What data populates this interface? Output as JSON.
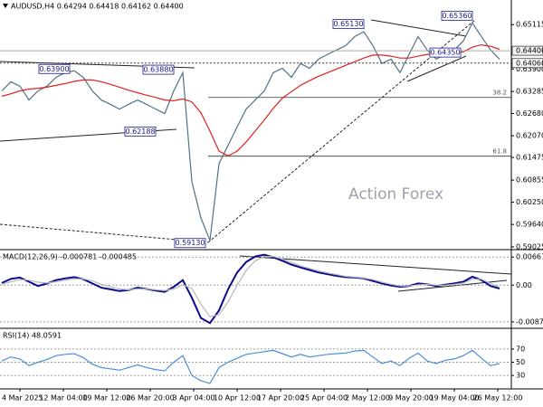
{
  "chart_data": [
    {
      "type": "line",
      "title": "AUDUSD,H4  0.64294 0.64418 0.64162 0.64400",
      "watermark": "Action Forex",
      "ylim": [
        0.5895,
        0.6579
      ],
      "yticks": [
        0.65115,
        {
          "value": 0.639,
          "label": "0.63900"
        },
        0.63285,
        {
          "value": 0.6268,
          "label": "0.62680"
        },
        {
          "value": 0.6207,
          "label": "0.62070"
        },
        0.61475,
        0.60855,
        {
          "value": 0.6025,
          "label": "0.60250"
        },
        {
          "value": 0.5964,
          "label": "0.59640"
        },
        0.59025
      ],
      "grid": false,
      "price_markers": [
        {
          "value": 0.644,
          "label": "0.64400"
        },
        {
          "value": 0.6406,
          "label": "0.64060"
        }
      ],
      "point_labels": [
        {
          "value": 0.639,
          "label": "0.63900"
        },
        {
          "value": 0.6388,
          "label": "0.63880"
        },
        {
          "value": 0.62188,
          "label": "0.62188"
        },
        {
          "value": 0.5913,
          "label": "0.59130"
        },
        {
          "value": 0.6513,
          "label": "0.65130"
        },
        {
          "value": 0.6536,
          "label": "0.65360"
        },
        {
          "value": 0.6435,
          "label": "0.64350"
        }
      ],
      "fib_levels": [
        {
          "value": 0.6312,
          "label": "38.2"
        },
        {
          "value": 0.6151,
          "label": "61.8"
        }
      ],
      "series": [
        {
          "color": "#4f7287",
          "values": [
            0.633,
            0.6355,
            0.6343,
            0.6305,
            0.633,
            0.6343,
            0.6367,
            0.638,
            0.6385,
            0.6367,
            0.633,
            0.6305,
            0.6293,
            0.628,
            0.6293,
            0.6305,
            0.6293,
            0.628,
            0.6268,
            0.633,
            0.638,
            0.6081,
            0.5982,
            0.592,
            0.6131,
            0.6181,
            0.6231,
            0.628,
            0.6305,
            0.633,
            0.638,
            0.6392,
            0.6367,
            0.6405,
            0.6392,
            0.6417,
            0.643,
            0.6442,
            0.6454,
            0.6479,
            0.6492,
            0.6454,
            0.6405,
            0.6417,
            0.638,
            0.643,
            0.6479,
            0.6442,
            0.6417,
            0.643,
            0.6442,
            0.6467,
            0.6516,
            0.6479,
            0.6442,
            0.6417
          ]
        },
        {
          "color": "#e02020",
          "values": [
            0.6315,
            0.6322,
            0.633,
            0.6335,
            0.6337,
            0.634,
            0.6345,
            0.635,
            0.6356,
            0.636,
            0.636,
            0.6355,
            0.6348,
            0.634,
            0.6332,
            0.6325,
            0.6318,
            0.6312,
            0.6305,
            0.6303,
            0.6308,
            0.63,
            0.627,
            0.622,
            0.6165,
            0.6152,
            0.6165,
            0.619,
            0.622,
            0.625,
            0.6282,
            0.631,
            0.6328,
            0.6345,
            0.6358,
            0.637,
            0.638,
            0.639,
            0.64,
            0.641,
            0.642,
            0.6428,
            0.6428,
            0.6425,
            0.642,
            0.642,
            0.6425,
            0.643,
            0.643,
            0.643,
            0.6433,
            0.6437,
            0.645,
            0.6456,
            0.6452,
            0.6444
          ]
        }
      ]
    },
    {
      "type": "line",
      "title": "MACD(12,26,9) -0.000781 -0.000485",
      "ylim": [
        -0.01004,
        0.00822
      ],
      "yticks": [
        0.006675,
        {
          "value": 0,
          "label": "0.00"
        },
        -0.008724
      ],
      "grid": true,
      "series": [
        {
          "color": "#0a0a8c",
          "values": [
            0.0005,
            0.0015,
            0.0018,
            0.0008,
            -0.0002,
            0.0004,
            0.0012,
            0.0016,
            0.0019,
            0.0014,
            0.0004,
            -0.0006,
            -0.001,
            -0.0014,
            -0.0012,
            -0.0006,
            -0.0009,
            -0.0013,
            -0.0016,
            -0.0004,
            0.0012,
            -0.003,
            -0.0078,
            -0.009,
            -0.006,
            -0.001,
            0.003,
            0.0055,
            0.0068,
            0.0072,
            0.0066,
            0.0058,
            0.0049,
            0.0042,
            0.0036,
            0.003,
            0.0026,
            0.0022,
            0.0019,
            0.0018,
            0.0016,
            0.001,
            0.0004,
            -0.0001,
            -0.0004,
            -0.0002,
            0.0004,
            0.0002,
            -0.0002,
            0.0001,
            0.0004,
            0.0008,
            0.002,
            0.0012,
            -0.0002,
            -0.0008
          ]
        },
        {
          "color": "#b8b8b8",
          "values": [
            0.0002,
            0.0008,
            0.0013,
            0.0012,
            0.0007,
            0.0005,
            0.0008,
            0.0012,
            0.0015,
            0.0015,
            0.001,
            0.0002,
            -0.0004,
            -0.0009,
            -0.0011,
            -0.0009,
            -0.0009,
            -0.0011,
            -0.0013,
            -0.0009,
            0.0001,
            -0.0008,
            -0.0045,
            -0.0075,
            -0.007,
            -0.004,
            0.0,
            0.0035,
            0.0058,
            0.0068,
            0.0068,
            0.0062,
            0.0054,
            0.0046,
            0.004,
            0.0034,
            0.0029,
            0.0025,
            0.0021,
            0.0019,
            0.0017,
            0.0013,
            0.0007,
            0.0002,
            -0.0002,
            -0.0002,
            0.0001,
            0.0002,
            0.0,
            0.0,
            0.0002,
            0.0005,
            0.0014,
            0.0014,
            0.0004,
            -0.0005
          ]
        }
      ]
    },
    {
      "type": "line",
      "title": "RSI(14) 48.0591",
      "ylim": [
        11,
        100
      ],
      "yticks": [
        70,
        50,
        30
      ],
      "grid": true,
      "x_axis_labels": [
        "4 Mar 2025",
        "12 Mar 04:00",
        "19 Mar 12:00",
        "26 Mar 20:00",
        "3 Apr 04:00",
        "10 Apr 12:00",
        "17 Apr 20:00",
        "25 Apr 04:00",
        "2 May 12:00",
        "9 May 20:00",
        "19 May 04:00",
        "26 May 12:00"
      ],
      "series": [
        {
          "color": "#4a8fd6",
          "values": [
            52,
            58,
            55,
            45,
            50,
            54,
            60,
            62,
            63,
            57,
            47,
            42,
            40,
            38,
            42,
            46,
            42,
            39,
            37,
            50,
            60,
            30,
            22,
            18,
            42,
            50,
            56,
            62,
            64,
            66,
            68,
            63,
            58,
            62,
            58,
            60,
            62,
            63,
            64,
            67,
            68,
            58,
            48,
            52,
            45,
            56,
            64,
            52,
            48,
            53,
            55,
            60,
            68,
            56,
            45,
            48
          ]
        }
      ]
    }
  ]
}
